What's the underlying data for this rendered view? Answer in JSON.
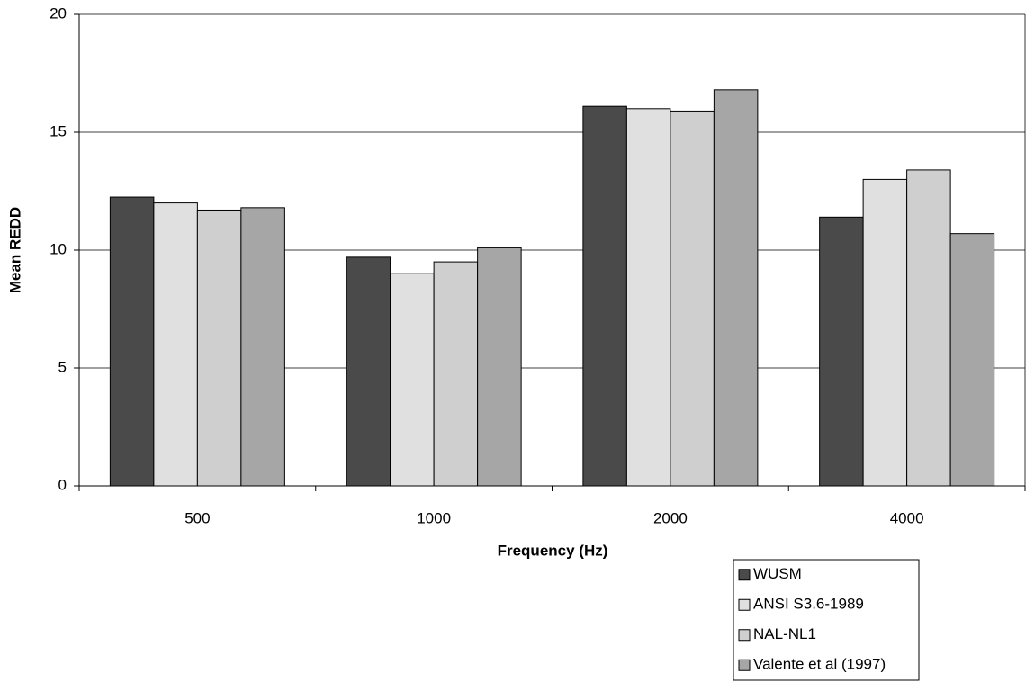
{
  "chart_data": {
    "type": "bar",
    "x_label": "Frequency (Hz)",
    "y_label": "Mean REDD",
    "categories": [
      "500",
      "1000",
      "2000",
      "4000"
    ],
    "series": [
      {
        "name": "WUSM",
        "color": "#4a4a4a",
        "values": [
          12.25,
          9.7,
          16.1,
          11.4
        ]
      },
      {
        "name": "ANSI S3.6-1989",
        "color": "#e0e0e0",
        "values": [
          12.0,
          9.0,
          16.0,
          13.0
        ]
      },
      {
        "name": "NAL-NL1",
        "color": "#cfcfcf",
        "values": [
          11.7,
          9.5,
          15.9,
          13.4
        ]
      },
      {
        "name": "Valente et al (1997)",
        "color": "#a6a6a6",
        "values": [
          11.8,
          10.1,
          16.8,
          10.7
        ]
      }
    ],
    "ylim": [
      0,
      20
    ],
    "yticks": [
      0,
      5,
      10,
      15,
      20
    ],
    "grid": true,
    "legend": "bottom-right"
  }
}
